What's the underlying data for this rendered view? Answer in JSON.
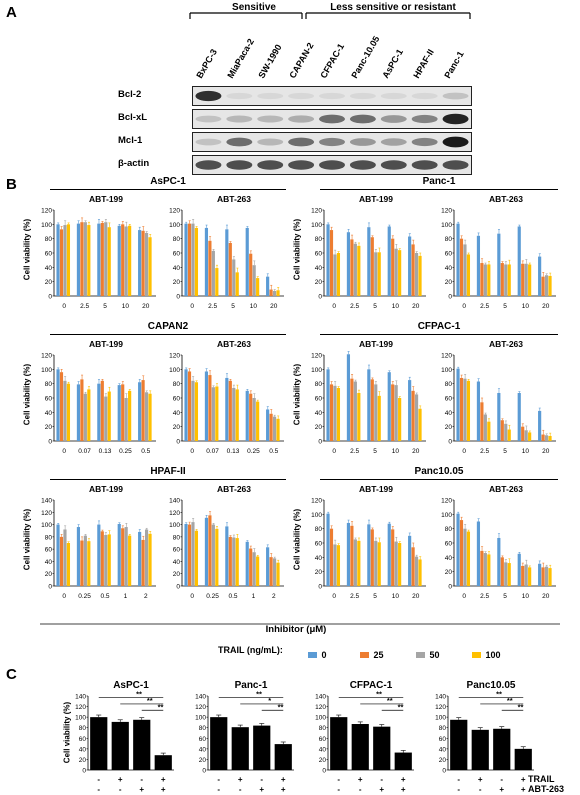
{
  "panels": {
    "A": "A",
    "B": "B",
    "C": "C"
  },
  "blot": {
    "group_sensitive": "Sensitive",
    "group_resistant": "Less sensitive or resistant",
    "lanes": [
      "BxPC-3",
      "MiaPaca-2",
      "SW-1990",
      "CAPAN-2",
      "CFPAC-1",
      "Panc-10.05",
      "AsPC-1",
      "HPAF-II",
      "Panc-1"
    ],
    "rows": [
      "Bcl-2",
      "Bcl-xL",
      "Mcl-1",
      "β-actin"
    ],
    "band_intensity": {
      "Bcl-2": [
        0.85,
        0.05,
        0.05,
        0.05,
        0.05,
        0.05,
        0.05,
        0.05,
        0.15
      ],
      "Bcl-xL": [
        0.15,
        0.2,
        0.2,
        0.25,
        0.55,
        0.55,
        0.35,
        0.45,
        0.9
      ],
      "Mcl-1": [
        0.15,
        0.55,
        0.2,
        0.55,
        0.45,
        0.35,
        0.3,
        0.45,
        0.95
      ],
      "β-actin": [
        0.7,
        0.7,
        0.7,
        0.7,
        0.7,
        0.7,
        0.7,
        0.7,
        0.7
      ]
    }
  },
  "legend": {
    "title": "TRAIL (ng/mL):",
    "items": [
      {
        "label": "0",
        "color": "#5b9bd5"
      },
      {
        "label": "25",
        "color": "#ed7d31"
      },
      {
        "label": "50",
        "color": "#a5a5a5"
      },
      {
        "label": "100",
        "color": "#ffc000"
      }
    ]
  },
  "xaxis_title": "Inhibitor (μM)",
  "ylabel": "Cell viability (%)",
  "chart_data": [
    {
      "type": "bar",
      "cell_line": "AsPC-1",
      "inhibitor": "ABT-199",
      "categories": [
        "0",
        "2.5",
        "5",
        "10",
        "20"
      ],
      "ylim": [
        0,
        120
      ],
      "yticks": [
        0,
        20,
        40,
        60,
        80,
        100,
        120
      ],
      "series": [
        {
          "name": "0",
          "values": [
            100,
            101,
            101,
            98,
            92
          ]
        },
        {
          "name": "25",
          "values": [
            93,
            103,
            102,
            100,
            91
          ]
        },
        {
          "name": "50",
          "values": [
            99,
            103,
            103,
            97,
            88
          ]
        },
        {
          "name": "100",
          "values": [
            100,
            99,
            96,
            98,
            82
          ]
        }
      ]
    },
    {
      "type": "bar",
      "cell_line": "AsPC-1",
      "inhibitor": "ABT-263",
      "categories": [
        "0",
        "2.5",
        "5",
        "10",
        "20"
      ],
      "ylim": [
        0,
        120
      ],
      "yticks": [
        0,
        20,
        40,
        60,
        80,
        100,
        120
      ],
      "series": [
        {
          "name": "0",
          "values": [
            101,
            95,
            93,
            95,
            27
          ]
        },
        {
          "name": "25",
          "values": [
            101,
            77,
            74,
            59,
            9
          ]
        },
        {
          "name": "50",
          "values": [
            101,
            63,
            51,
            43,
            7
          ]
        },
        {
          "name": "100",
          "values": [
            95,
            39,
            33,
            25,
            8
          ]
        }
      ]
    },
    {
      "type": "bar",
      "cell_line": "Panc-1",
      "inhibitor": "ABT-199",
      "categories": [
        "0",
        "2.5",
        "5",
        "10",
        "20"
      ],
      "ylim": [
        0,
        120
      ],
      "yticks": [
        0,
        20,
        40,
        60,
        80,
        100,
        120
      ],
      "series": [
        {
          "name": "0",
          "values": [
            100,
            89,
            96,
            97,
            83
          ]
        },
        {
          "name": "25",
          "values": [
            92,
            79,
            82,
            80,
            72
          ]
        },
        {
          "name": "50",
          "values": [
            58,
            73,
            61,
            66,
            60
          ]
        },
        {
          "name": "100",
          "values": [
            60,
            70,
            61,
            64,
            56
          ]
        }
      ]
    },
    {
      "type": "bar",
      "cell_line": "Panc-1",
      "inhibitor": "ABT-263",
      "categories": [
        "0",
        "2.5",
        "5",
        "10",
        "20"
      ],
      "ylim": [
        0,
        120
      ],
      "yticks": [
        0,
        20,
        40,
        60,
        80,
        100,
        120
      ],
      "series": [
        {
          "name": "0",
          "values": [
            101,
            84,
            87,
            97,
            55
          ]
        },
        {
          "name": "25",
          "values": [
            80,
            46,
            46,
            45,
            27
          ]
        },
        {
          "name": "50",
          "values": [
            72,
            44,
            44,
            45,
            29
          ]
        },
        {
          "name": "100",
          "values": [
            58,
            44,
            44,
            44,
            28
          ]
        }
      ]
    },
    {
      "type": "bar",
      "cell_line": "CAPAN2",
      "inhibitor": "ABT-199",
      "categories": [
        "0",
        "0.07",
        "0.13",
        "0.25",
        "0.5"
      ],
      "ylim": [
        0,
        120
      ],
      "yticks": [
        0,
        20,
        40,
        60,
        80,
        100,
        120
      ],
      "series": [
        {
          "name": "0",
          "values": [
            100,
            79,
            80,
            78,
            82
          ]
        },
        {
          "name": "25",
          "values": [
            96,
            86,
            84,
            79,
            85
          ]
        },
        {
          "name": "50",
          "values": [
            84,
            66,
            62,
            60,
            68
          ]
        },
        {
          "name": "100",
          "values": [
            80,
            72,
            69,
            70,
            66
          ]
        }
      ]
    },
    {
      "type": "bar",
      "cell_line": "CAPAN2",
      "inhibitor": "ABT-263",
      "categories": [
        "0",
        "0.07",
        "0.13",
        "0.25",
        "0.5"
      ],
      "ylim": [
        0,
        120
      ],
      "yticks": [
        0,
        20,
        40,
        60,
        80,
        100,
        120
      ],
      "series": [
        {
          "name": "0",
          "values": [
            100,
            97,
            88,
            70,
            44
          ]
        },
        {
          "name": "25",
          "values": [
            97,
            92,
            84,
            66,
            38
          ]
        },
        {
          "name": "50",
          "values": [
            84,
            75,
            74,
            60,
            34
          ]
        },
        {
          "name": "100",
          "values": [
            82,
            76,
            72,
            55,
            31
          ]
        }
      ]
    },
    {
      "type": "bar",
      "cell_line": "CFPAC-1",
      "inhibitor": "ABT-199",
      "categories": [
        "0",
        "2.5",
        "5",
        "10",
        "20"
      ],
      "ylim": [
        0,
        120
      ],
      "yticks": [
        0,
        20,
        40,
        60,
        80,
        100,
        120
      ],
      "series": [
        {
          "name": "0",
          "values": [
            100,
            121,
            100,
            96,
            85
          ]
        },
        {
          "name": "25",
          "values": [
            79,
            87,
            86,
            79,
            70
          ]
        },
        {
          "name": "50",
          "values": [
            77,
            83,
            79,
            78,
            65
          ]
        },
        {
          "name": "100",
          "values": [
            74,
            67,
            63,
            60,
            45
          ]
        }
      ]
    },
    {
      "type": "bar",
      "cell_line": "CFPAC-1",
      "inhibitor": "ABT-263",
      "categories": [
        "0",
        "2.5",
        "5",
        "10",
        "20"
      ],
      "ylim": [
        0,
        120
      ],
      "yticks": [
        0,
        20,
        40,
        60,
        80,
        100,
        120
      ],
      "series": [
        {
          "name": "0",
          "values": [
            101,
            83,
            67,
            67,
            42
          ]
        },
        {
          "name": "25",
          "values": [
            88,
            54,
            29,
            20,
            9
          ]
        },
        {
          "name": "50",
          "values": [
            87,
            37,
            24,
            15,
            8
          ]
        },
        {
          "name": "100",
          "values": [
            84,
            27,
            16,
            12,
            7
          ]
        }
      ]
    },
    {
      "type": "bar",
      "cell_line": "HPAF-II",
      "inhibitor": "ABT-199",
      "categories": [
        "0",
        "0.25",
        "0.5",
        "1",
        "2"
      ],
      "ylim": [
        0,
        140
      ],
      "yticks": [
        0,
        20,
        40,
        60,
        80,
        100,
        120,
        140
      ],
      "series": [
        {
          "name": "0",
          "values": [
            100,
            96,
            100,
            101,
            88
          ]
        },
        {
          "name": "25",
          "values": [
            80,
            74,
            89,
            94,
            75
          ]
        },
        {
          "name": "50",
          "values": [
            92,
            82,
            83,
            96,
            92
          ]
        },
        {
          "name": "100",
          "values": [
            70,
            73,
            84,
            82,
            85
          ]
        }
      ]
    },
    {
      "type": "bar",
      "cell_line": "HPAF-II",
      "inhibitor": "ABT-263",
      "categories": [
        "0",
        "0.25",
        "0.5",
        "1",
        "2"
      ],
      "ylim": [
        0,
        140
      ],
      "yticks": [
        0,
        20,
        40,
        60,
        80,
        100,
        120,
        140
      ],
      "series": [
        {
          "name": "0",
          "values": [
            101,
            111,
            97,
            72,
            63
          ]
        },
        {
          "name": "25",
          "values": [
            100,
            115,
            80,
            61,
            47
          ]
        },
        {
          "name": "50",
          "values": [
            104,
            100,
            79,
            55,
            45
          ]
        },
        {
          "name": "100",
          "values": [
            90,
            93,
            78,
            48,
            38
          ]
        }
      ]
    },
    {
      "type": "bar",
      "cell_line": "Panc10.05",
      "inhibitor": "ABT-199",
      "categories": [
        "0",
        "2.5",
        "5",
        "10",
        "20"
      ],
      "ylim": [
        0,
        120
      ],
      "yticks": [
        0,
        20,
        40,
        60,
        80,
        100,
        120
      ],
      "series": [
        {
          "name": "0",
          "values": [
            101,
            88,
            86,
            87,
            70
          ]
        },
        {
          "name": "25",
          "values": [
            80,
            84,
            79,
            79,
            54
          ]
        },
        {
          "name": "50",
          "values": [
            58,
            65,
            63,
            62,
            41
          ]
        },
        {
          "name": "100",
          "values": [
            57,
            63,
            61,
            60,
            37
          ]
        }
      ]
    },
    {
      "type": "bar",
      "cell_line": "Panc10.05",
      "inhibitor": "ABT-263",
      "categories": [
        "0",
        "2.5",
        "5",
        "10",
        "20"
      ],
      "ylim": [
        0,
        120
      ],
      "yticks": [
        0,
        20,
        40,
        60,
        80,
        100,
        120
      ],
      "series": [
        {
          "name": "0",
          "values": [
            101,
            90,
            67,
            45,
            31
          ]
        },
        {
          "name": "25",
          "values": [
            92,
            49,
            40,
            28,
            26
          ]
        },
        {
          "name": "50",
          "values": [
            80,
            46,
            33,
            30,
            27
          ]
        },
        {
          "name": "100",
          "values": [
            76,
            44,
            32,
            26,
            25
          ]
        }
      ]
    }
  ],
  "panel_c": {
    "row_labels": [
      "TRAIL",
      "ABT-263"
    ],
    "row_signs": [
      [
        "-",
        "+",
        "-",
        "+"
      ],
      [
        "-",
        "-",
        "+",
        "+"
      ]
    ],
    "charts": [
      {
        "type": "bar",
        "title": "AsPC-1",
        "values": [
          100,
          91,
          95,
          28
        ],
        "ylim": [
          0,
          140
        ],
        "yticks": [
          0,
          20,
          40,
          60,
          80,
          100,
          120,
          140
        ],
        "sig": [
          [
            "**",
            0,
            3
          ],
          [
            "**",
            1,
            3
          ],
          [
            "**",
            2,
            3
          ]
        ]
      },
      {
        "type": "bar",
        "title": "Panc-1",
        "values": [
          100,
          81,
          84,
          49
        ],
        "ylim": [
          0,
          140
        ],
        "yticks": [
          0,
          20,
          40,
          60,
          80,
          100,
          120,
          140
        ],
        "sig": [
          [
            "**",
            0,
            3
          ],
          [
            "*",
            1,
            3
          ],
          [
            "**",
            2,
            3
          ]
        ]
      },
      {
        "type": "bar",
        "title": "CFPAC-1",
        "values": [
          100,
          87,
          82,
          33
        ],
        "ylim": [
          0,
          140
        ],
        "yticks": [
          0,
          20,
          40,
          60,
          80,
          100,
          120,
          140
        ],
        "sig": [
          [
            "**",
            0,
            3
          ],
          [
            "**",
            1,
            3
          ],
          [
            "**",
            2,
            3
          ]
        ]
      },
      {
        "type": "bar",
        "title": "Panc10.05",
        "values": [
          95,
          76,
          78,
          40
        ],
        "ylim": [
          0,
          140
        ],
        "yticks": [
          0,
          20,
          40,
          60,
          80,
          100,
          120,
          140
        ],
        "sig": [
          [
            "**",
            0,
            3
          ],
          [
            "**",
            1,
            3
          ],
          [
            "**",
            2,
            3
          ]
        ]
      }
    ]
  }
}
